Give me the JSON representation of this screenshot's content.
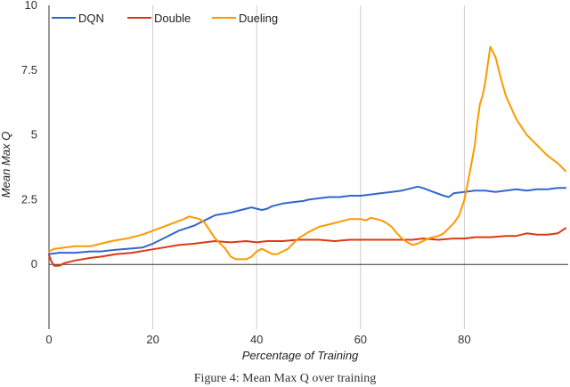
{
  "caption": "Figure 4: Mean Max Q over training",
  "chart_data": {
    "type": "line",
    "xlabel": "Percentage of Training",
    "ylabel": "Mean Max Q",
    "xlim": [
      0,
      100
    ],
    "ylim": [
      -2.5,
      10
    ],
    "xticks": [
      0,
      20,
      40,
      60,
      80
    ],
    "yticks": [
      0,
      2.5,
      5,
      7.5,
      10
    ],
    "ytick_labels": [
      "0",
      "2.5",
      "5",
      "7.5",
      "10"
    ],
    "grid": "vertical",
    "legend_position": "top-left",
    "series": [
      {
        "name": "DQN",
        "color": "#3366cc",
        "x": [
          0,
          2,
          5,
          8,
          10,
          12,
          15,
          18,
          20,
          22,
          25,
          28,
          30,
          32,
          35,
          37,
          39,
          40,
          41,
          42,
          43,
          45,
          47,
          49,
          50,
          52,
          54,
          56,
          58,
          60,
          62,
          64,
          66,
          68,
          70,
          71,
          72,
          74,
          76,
          77,
          78,
          80,
          82,
          84,
          86,
          88,
          90,
          92,
          94,
          96,
          98,
          99.5
        ],
        "y": [
          0.4,
          0.45,
          0.45,
          0.5,
          0.5,
          0.55,
          0.6,
          0.65,
          0.8,
          1.0,
          1.3,
          1.5,
          1.7,
          1.9,
          2.0,
          2.1,
          2.2,
          2.15,
          2.1,
          2.15,
          2.25,
          2.35,
          2.4,
          2.45,
          2.5,
          2.55,
          2.6,
          2.6,
          2.65,
          2.65,
          2.7,
          2.75,
          2.8,
          2.85,
          2.95,
          3.0,
          2.95,
          2.8,
          2.65,
          2.6,
          2.75,
          2.8,
          2.85,
          2.85,
          2.8,
          2.85,
          2.9,
          2.85,
          2.9,
          2.9,
          2.95,
          2.95
        ]
      },
      {
        "name": "Double",
        "color": "#dc3912",
        "x": [
          0,
          0.5,
          1,
          2,
          3,
          5,
          8,
          10,
          13,
          16,
          19,
          22,
          25,
          28,
          30,
          32,
          35,
          38,
          40,
          42,
          45,
          48,
          50,
          52,
          55,
          58,
          60,
          62,
          65,
          68,
          70,
          72,
          75,
          78,
          80,
          82,
          85,
          88,
          90,
          92,
          94,
          96,
          98,
          99.5
        ],
        "y": [
          0.35,
          0.1,
          -0.05,
          -0.05,
          0.05,
          0.15,
          0.25,
          0.3,
          0.4,
          0.45,
          0.55,
          0.65,
          0.75,
          0.8,
          0.85,
          0.9,
          0.85,
          0.9,
          0.85,
          0.9,
          0.9,
          0.95,
          0.95,
          0.95,
          0.9,
          0.95,
          0.95,
          0.95,
          0.95,
          0.95,
          0.95,
          1.0,
          0.95,
          1.0,
          1.0,
          1.05,
          1.05,
          1.1,
          1.1,
          1.2,
          1.15,
          1.15,
          1.2,
          1.4
        ]
      },
      {
        "name": "Dueling",
        "color": "#ff9900",
        "x": [
          0,
          1,
          3,
          5,
          8,
          10,
          12,
          15,
          18,
          20,
          22,
          24,
          26,
          27,
          28,
          29,
          30,
          31,
          32,
          33,
          34,
          35,
          36,
          37,
          38,
          39,
          40,
          41,
          42,
          43,
          44,
          45,
          46,
          47,
          48,
          50,
          52,
          54,
          56,
          58,
          60,
          61,
          62,
          63,
          64,
          65,
          66,
          67,
          68,
          69,
          70,
          71,
          72,
          73,
          74,
          75,
          76,
          77,
          78,
          79,
          80,
          81,
          82,
          82.5,
          83,
          83.5,
          84,
          85,
          86,
          87,
          88,
          90,
          92,
          94,
          96,
          98,
          99.5
        ],
        "y": [
          0.5,
          0.6,
          0.65,
          0.7,
          0.7,
          0.8,
          0.9,
          1.0,
          1.15,
          1.3,
          1.45,
          1.6,
          1.75,
          1.85,
          1.8,
          1.75,
          1.6,
          1.3,
          1.0,
          0.8,
          0.6,
          0.3,
          0.2,
          0.2,
          0.2,
          0.3,
          0.5,
          0.6,
          0.5,
          0.4,
          0.4,
          0.5,
          0.6,
          0.8,
          1.0,
          1.25,
          1.45,
          1.55,
          1.65,
          1.75,
          1.75,
          1.7,
          1.8,
          1.75,
          1.7,
          1.6,
          1.45,
          1.2,
          1.0,
          0.85,
          0.75,
          0.8,
          0.9,
          1.0,
          1.05,
          1.1,
          1.2,
          1.4,
          1.6,
          1.9,
          2.5,
          3.5,
          4.6,
          5.5,
          6.2,
          6.5,
          7.0,
          8.4,
          8.0,
          7.2,
          6.5,
          5.6,
          5.0,
          4.6,
          4.2,
          3.9,
          3.6
        ]
      }
    ]
  }
}
